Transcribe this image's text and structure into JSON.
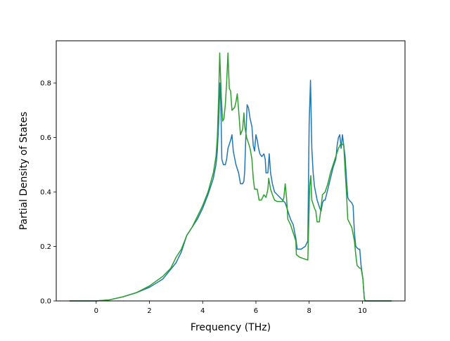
{
  "chart_data": {
    "type": "line",
    "title": "",
    "xlabel": "Frequency (THz)",
    "ylabel": "Partial Density of States",
    "xlim": [
      -1.5,
      11.6
    ],
    "ylim": [
      0.0,
      0.955
    ],
    "xticks": [
      0,
      2,
      4,
      6,
      8,
      10
    ],
    "yticks": [
      0.0,
      0.2,
      0.4,
      0.6,
      0.8
    ],
    "xtick_labels": [
      "0",
      "2",
      "4",
      "6",
      "8",
      "10"
    ],
    "ytick_labels": [
      "0.0",
      "0.2",
      "0.4",
      "0.6",
      "0.8"
    ],
    "grid": false,
    "legend": "none",
    "series": [
      {
        "color": "#1f77b4",
        "points": [
          [
            -1.0,
            0.0
          ],
          [
            0.0,
            0.0
          ],
          [
            0.5,
            0.004
          ],
          [
            1.0,
            0.015
          ],
          [
            1.5,
            0.03
          ],
          [
            2.0,
            0.05
          ],
          [
            2.5,
            0.08
          ],
          [
            3.0,
            0.14
          ],
          [
            3.2,
            0.18
          ],
          [
            3.4,
            0.24
          ],
          [
            3.6,
            0.27
          ],
          [
            3.8,
            0.3
          ],
          [
            4.0,
            0.34
          ],
          [
            4.2,
            0.39
          ],
          [
            4.4,
            0.45
          ],
          [
            4.5,
            0.5
          ],
          [
            4.55,
            0.55
          ],
          [
            4.6,
            0.65
          ],
          [
            4.65,
            0.8
          ],
          [
            4.68,
            0.73
          ],
          [
            4.72,
            0.52
          ],
          [
            4.78,
            0.5
          ],
          [
            4.85,
            0.5
          ],
          [
            4.9,
            0.52
          ],
          [
            4.95,
            0.56
          ],
          [
            5.05,
            0.59
          ],
          [
            5.1,
            0.61
          ],
          [
            5.15,
            0.55
          ],
          [
            5.25,
            0.5
          ],
          [
            5.35,
            0.47
          ],
          [
            5.42,
            0.43
          ],
          [
            5.5,
            0.43
          ],
          [
            5.55,
            0.44
          ],
          [
            5.58,
            0.48
          ],
          [
            5.62,
            0.6
          ],
          [
            5.67,
            0.72
          ],
          [
            5.72,
            0.71
          ],
          [
            5.78,
            0.67
          ],
          [
            5.85,
            0.64
          ],
          [
            5.9,
            0.57
          ],
          [
            5.95,
            0.55
          ],
          [
            6.0,
            0.61
          ],
          [
            6.05,
            0.59
          ],
          [
            6.1,
            0.56
          ],
          [
            6.15,
            0.54
          ],
          [
            6.22,
            0.53
          ],
          [
            6.3,
            0.54
          ],
          [
            6.35,
            0.52
          ],
          [
            6.38,
            0.47
          ],
          [
            6.45,
            0.47
          ],
          [
            6.5,
            0.54
          ],
          [
            6.55,
            0.47
          ],
          [
            6.62,
            0.43
          ],
          [
            6.7,
            0.4
          ],
          [
            6.8,
            0.39
          ],
          [
            6.9,
            0.38
          ],
          [
            7.0,
            0.37
          ],
          [
            7.1,
            0.36
          ],
          [
            7.2,
            0.33
          ],
          [
            7.3,
            0.3
          ],
          [
            7.4,
            0.28
          ],
          [
            7.5,
            0.23
          ],
          [
            7.55,
            0.19
          ],
          [
            7.7,
            0.19
          ],
          [
            7.85,
            0.2
          ],
          [
            7.95,
            0.22
          ],
          [
            8.0,
            0.65
          ],
          [
            8.05,
            0.81
          ],
          [
            8.1,
            0.56
          ],
          [
            8.15,
            0.47
          ],
          [
            8.2,
            0.42
          ],
          [
            8.3,
            0.37
          ],
          [
            8.4,
            0.34
          ],
          [
            8.45,
            0.33
          ],
          [
            8.5,
            0.36
          ],
          [
            8.55,
            0.37
          ],
          [
            8.6,
            0.37
          ],
          [
            8.7,
            0.41
          ],
          [
            8.8,
            0.45
          ],
          [
            8.9,
            0.49
          ],
          [
            9.0,
            0.52
          ],
          [
            9.05,
            0.57
          ],
          [
            9.1,
            0.6
          ],
          [
            9.15,
            0.61
          ],
          [
            9.2,
            0.56
          ],
          [
            9.25,
            0.61
          ],
          [
            9.3,
            0.57
          ],
          [
            9.35,
            0.53
          ],
          [
            9.4,
            0.45
          ],
          [
            9.45,
            0.38
          ],
          [
            9.5,
            0.37
          ],
          [
            9.6,
            0.36
          ],
          [
            9.65,
            0.35
          ],
          [
            9.7,
            0.25
          ],
          [
            9.75,
            0.2
          ],
          [
            9.85,
            0.19
          ],
          [
            9.9,
            0.19
          ],
          [
            9.95,
            0.13
          ],
          [
            10.02,
            0.08
          ],
          [
            10.07,
            0.01
          ],
          [
            10.1,
            0.0
          ],
          [
            11.1,
            0.0
          ]
        ]
      },
      {
        "color": "#2ca02c",
        "points": [
          [
            -1.0,
            0.0
          ],
          [
            0.0,
            0.0
          ],
          [
            0.5,
            0.004
          ],
          [
            1.0,
            0.015
          ],
          [
            1.5,
            0.03
          ],
          [
            2.0,
            0.055
          ],
          [
            2.5,
            0.09
          ],
          [
            2.8,
            0.12
          ],
          [
            3.0,
            0.16
          ],
          [
            3.2,
            0.19
          ],
          [
            3.4,
            0.24
          ],
          [
            3.6,
            0.27
          ],
          [
            3.8,
            0.31
          ],
          [
            4.0,
            0.35
          ],
          [
            4.2,
            0.4
          ],
          [
            4.4,
            0.47
          ],
          [
            4.5,
            0.53
          ],
          [
            4.55,
            0.6
          ],
          [
            4.6,
            0.75
          ],
          [
            4.64,
            0.91
          ],
          [
            4.7,
            0.75
          ],
          [
            4.75,
            0.66
          ],
          [
            4.8,
            0.67
          ],
          [
            4.85,
            0.72
          ],
          [
            4.9,
            0.8
          ],
          [
            4.95,
            0.91
          ],
          [
            5.0,
            0.78
          ],
          [
            5.05,
            0.77
          ],
          [
            5.1,
            0.7
          ],
          [
            5.2,
            0.71
          ],
          [
            5.25,
            0.73
          ],
          [
            5.3,
            0.76
          ],
          [
            5.35,
            0.7
          ],
          [
            5.42,
            0.61
          ],
          [
            5.5,
            0.63
          ],
          [
            5.55,
            0.69
          ],
          [
            5.58,
            0.64
          ],
          [
            5.65,
            0.6
          ],
          [
            5.72,
            0.58
          ],
          [
            5.78,
            0.56
          ],
          [
            5.85,
            0.52
          ],
          [
            5.9,
            0.45
          ],
          [
            5.95,
            0.41
          ],
          [
            6.05,
            0.41
          ],
          [
            6.12,
            0.37
          ],
          [
            6.2,
            0.37
          ],
          [
            6.3,
            0.39
          ],
          [
            6.38,
            0.38
          ],
          [
            6.45,
            0.41
          ],
          [
            6.48,
            0.45
          ],
          [
            6.55,
            0.41
          ],
          [
            6.62,
            0.39
          ],
          [
            6.7,
            0.37
          ],
          [
            6.8,
            0.365
          ],
          [
            7.0,
            0.365
          ],
          [
            7.05,
            0.38
          ],
          [
            7.1,
            0.43
          ],
          [
            7.15,
            0.38
          ],
          [
            7.2,
            0.3
          ],
          [
            7.3,
            0.28
          ],
          [
            7.4,
            0.25
          ],
          [
            7.5,
            0.22
          ],
          [
            7.52,
            0.17
          ],
          [
            7.65,
            0.16
          ],
          [
            7.8,
            0.155
          ],
          [
            7.95,
            0.15
          ],
          [
            8.02,
            0.42
          ],
          [
            8.06,
            0.46
          ],
          [
            8.1,
            0.37
          ],
          [
            8.2,
            0.34
          ],
          [
            8.25,
            0.33
          ],
          [
            8.3,
            0.29
          ],
          [
            8.38,
            0.29
          ],
          [
            8.42,
            0.32
          ],
          [
            8.5,
            0.39
          ],
          [
            8.6,
            0.4
          ],
          [
            8.7,
            0.43
          ],
          [
            8.8,
            0.47
          ],
          [
            8.9,
            0.5
          ],
          [
            9.0,
            0.53
          ],
          [
            9.1,
            0.56
          ],
          [
            9.2,
            0.58
          ],
          [
            9.3,
            0.57
          ],
          [
            9.35,
            0.48
          ],
          [
            9.4,
            0.4
          ],
          [
            9.45,
            0.3
          ],
          [
            9.55,
            0.28
          ],
          [
            9.6,
            0.27
          ],
          [
            9.7,
            0.22
          ],
          [
            9.75,
            0.17
          ],
          [
            9.8,
            0.13
          ],
          [
            9.9,
            0.12
          ],
          [
            9.95,
            0.12
          ],
          [
            10.02,
            0.08
          ],
          [
            10.07,
            0.01
          ],
          [
            10.1,
            0.0
          ],
          [
            11.1,
            0.0
          ]
        ]
      }
    ]
  }
}
